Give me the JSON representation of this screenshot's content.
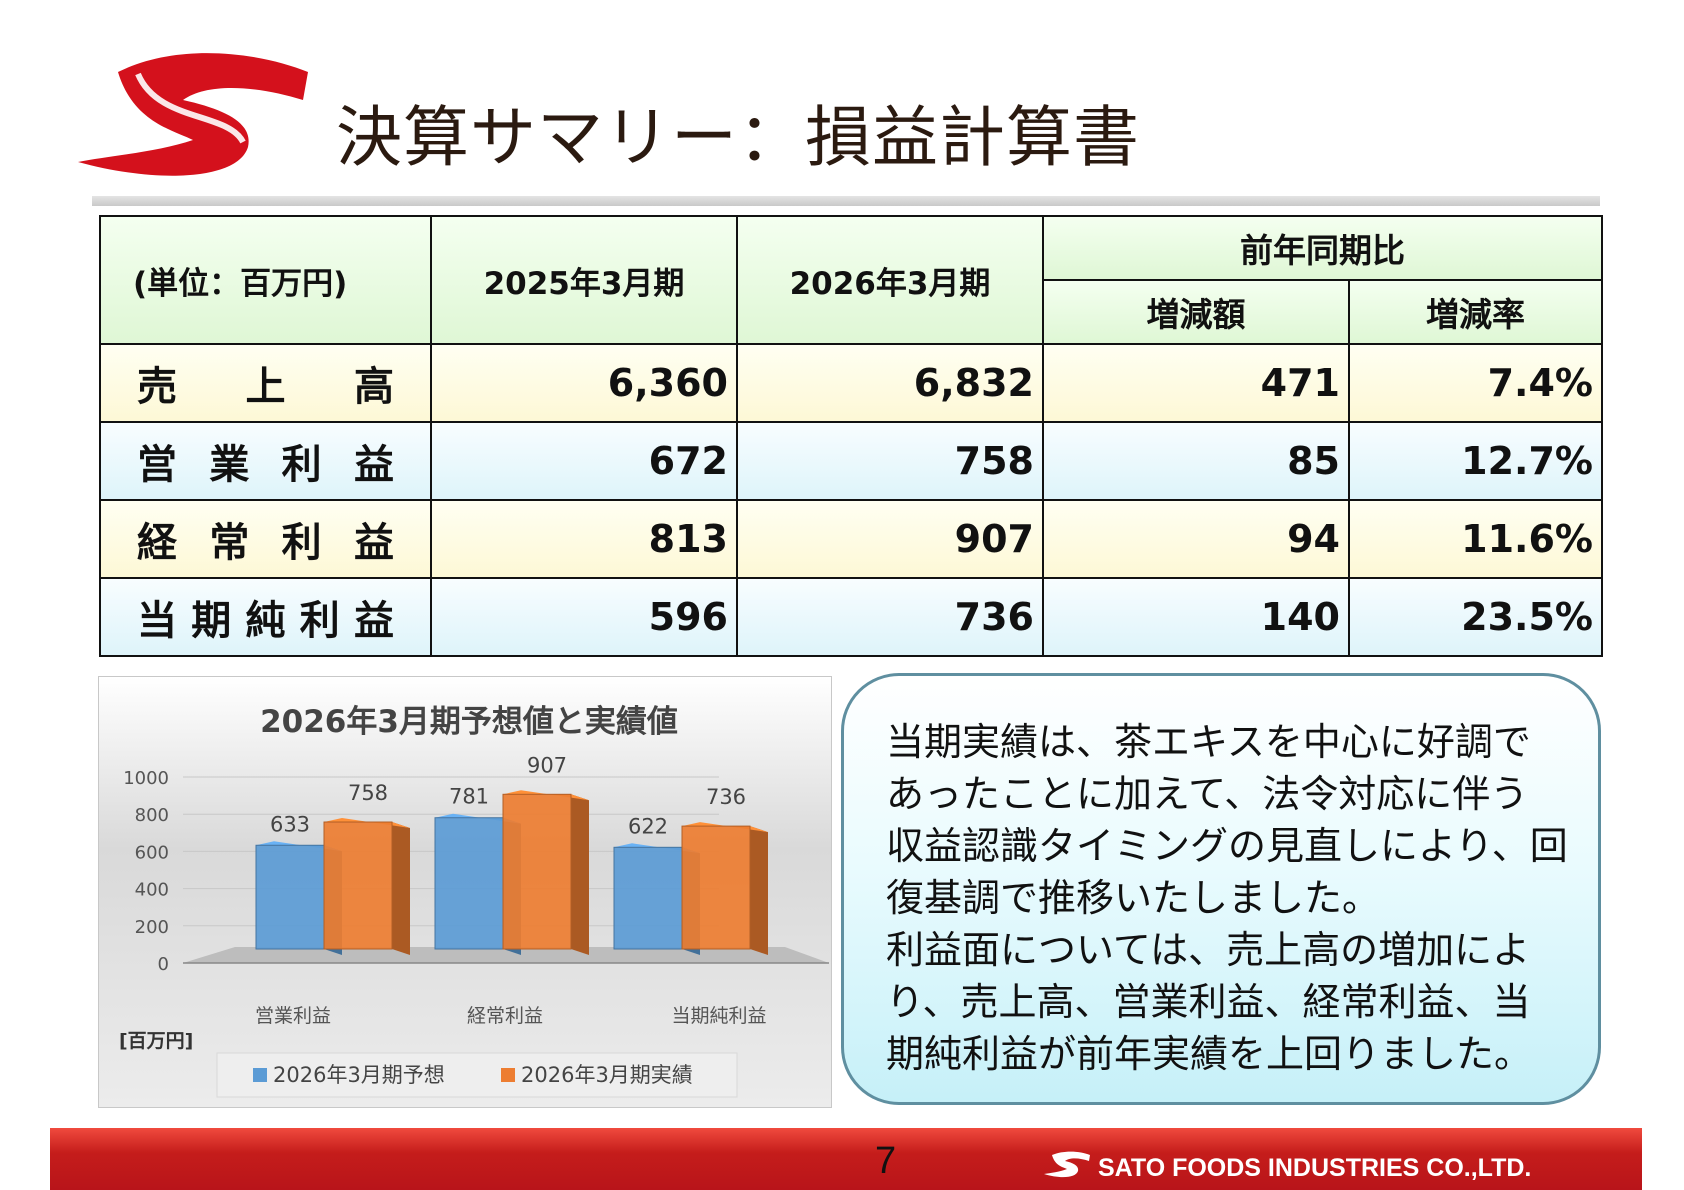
{
  "colors": {
    "brand_red": "#d4111c",
    "forecast_blue": "#5b9bd5",
    "actual_orange": "#ed7d31",
    "header_green": "#dff7d5"
  },
  "title": "決算サマリー：損益計算書",
  "table": {
    "unit": "(単位：百万円)",
    "col_2025": "2025年3月期",
    "col_2026": "2026年3月期",
    "yoy_group": "前年同期比",
    "col_change_amount": "増減額",
    "col_change_rate": "増減率",
    "rows": [
      {
        "label": "売上高",
        "fy2025": "6,360",
        "fy2026": "6,832",
        "change": "471",
        "rate": "7.4%"
      },
      {
        "label": "営業利益",
        "fy2025": "672",
        "fy2026": "758",
        "change": "85",
        "rate": "12.7%"
      },
      {
        "label": "経常利益",
        "fy2025": "813",
        "fy2026": "907",
        "change": "94",
        "rate": "11.6%"
      },
      {
        "label": "当期純利益",
        "fy2025": "596",
        "fy2026": "736",
        "change": "140",
        "rate": "23.5%"
      }
    ]
  },
  "chart_data": {
    "type": "bar",
    "title": "2026年3月期予想値と実績値",
    "categories": [
      "営業利益",
      "経常利益",
      "当期純利益"
    ],
    "series": [
      {
        "name": "2026年3月期予想",
        "values": [
          633,
          781,
          622
        ]
      },
      {
        "name": "2026年3月期実績",
        "values": [
          758,
          907,
          736
        ]
      }
    ],
    "ylim": [
      0,
      1000
    ],
    "yticks": [
      "0",
      "200",
      "400",
      "600",
      "800",
      "1000"
    ],
    "unit_label": "[百万円]",
    "legend_position": "bottom",
    "three_d": true
  },
  "note": {
    "lines": [
      "当期実績は、茶エキスを中心に好調で",
      "あったことに加えて、法令対応に伴う",
      "収益認識タイミングの見直しにより、回",
      "復基調で推移いたしました。",
      "利益面については、売上高の増加によ",
      "り、売上高、営業利益、経常利益、当",
      "期純利益が前年実績を上回りました。"
    ]
  },
  "footer": {
    "page_number": "7",
    "company": "SATO FOODS INDUSTRIES CO.,LTD."
  }
}
